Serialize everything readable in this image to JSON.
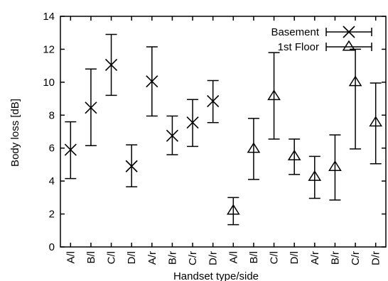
{
  "chart_data": {
    "type": "scatter",
    "title": "",
    "xlabel": "Handset type/side",
    "ylabel": "Body loss [dB]",
    "ylim": [
      0,
      14
    ],
    "yticks": [
      0,
      2,
      4,
      6,
      8,
      10,
      12,
      14
    ],
    "categories": [
      "A/l",
      "B/l",
      "C/l",
      "D/l",
      "A/r",
      "B/r",
      "C/r",
      "D/r",
      "A/l",
      "B/l",
      "C/l",
      "D/l",
      "A/r",
      "B/r",
      "C/r",
      "D/r"
    ],
    "grid": false,
    "legend_position": "top-right",
    "series": [
      {
        "name": "Basement",
        "marker": "x",
        "x_index": [
          0,
          1,
          2,
          3,
          4,
          5,
          6,
          7
        ],
        "values": [
          5.9,
          8.45,
          11.05,
          4.9,
          10.05,
          6.75,
          7.55,
          8.85
        ],
        "lower": [
          4.15,
          6.15,
          9.2,
          3.65,
          7.95,
          5.6,
          6.1,
          7.55
        ],
        "upper": [
          7.6,
          10.8,
          12.9,
          6.2,
          12.15,
          7.95,
          8.95,
          10.1
        ]
      },
      {
        "name": "1st Floor",
        "marker": "triangle",
        "x_index": [
          8,
          9,
          10,
          11,
          12,
          13,
          14,
          15
        ],
        "values": [
          2.2,
          5.95,
          9.15,
          5.5,
          4.25,
          4.85,
          10.0,
          7.55
        ],
        "lower": [
          1.35,
          4.1,
          6.55,
          4.4,
          2.95,
          2.85,
          5.95,
          5.05
        ],
        "upper": [
          3.0,
          7.8,
          11.8,
          6.55,
          5.5,
          6.8,
          12.0,
          9.95
        ]
      }
    ]
  }
}
